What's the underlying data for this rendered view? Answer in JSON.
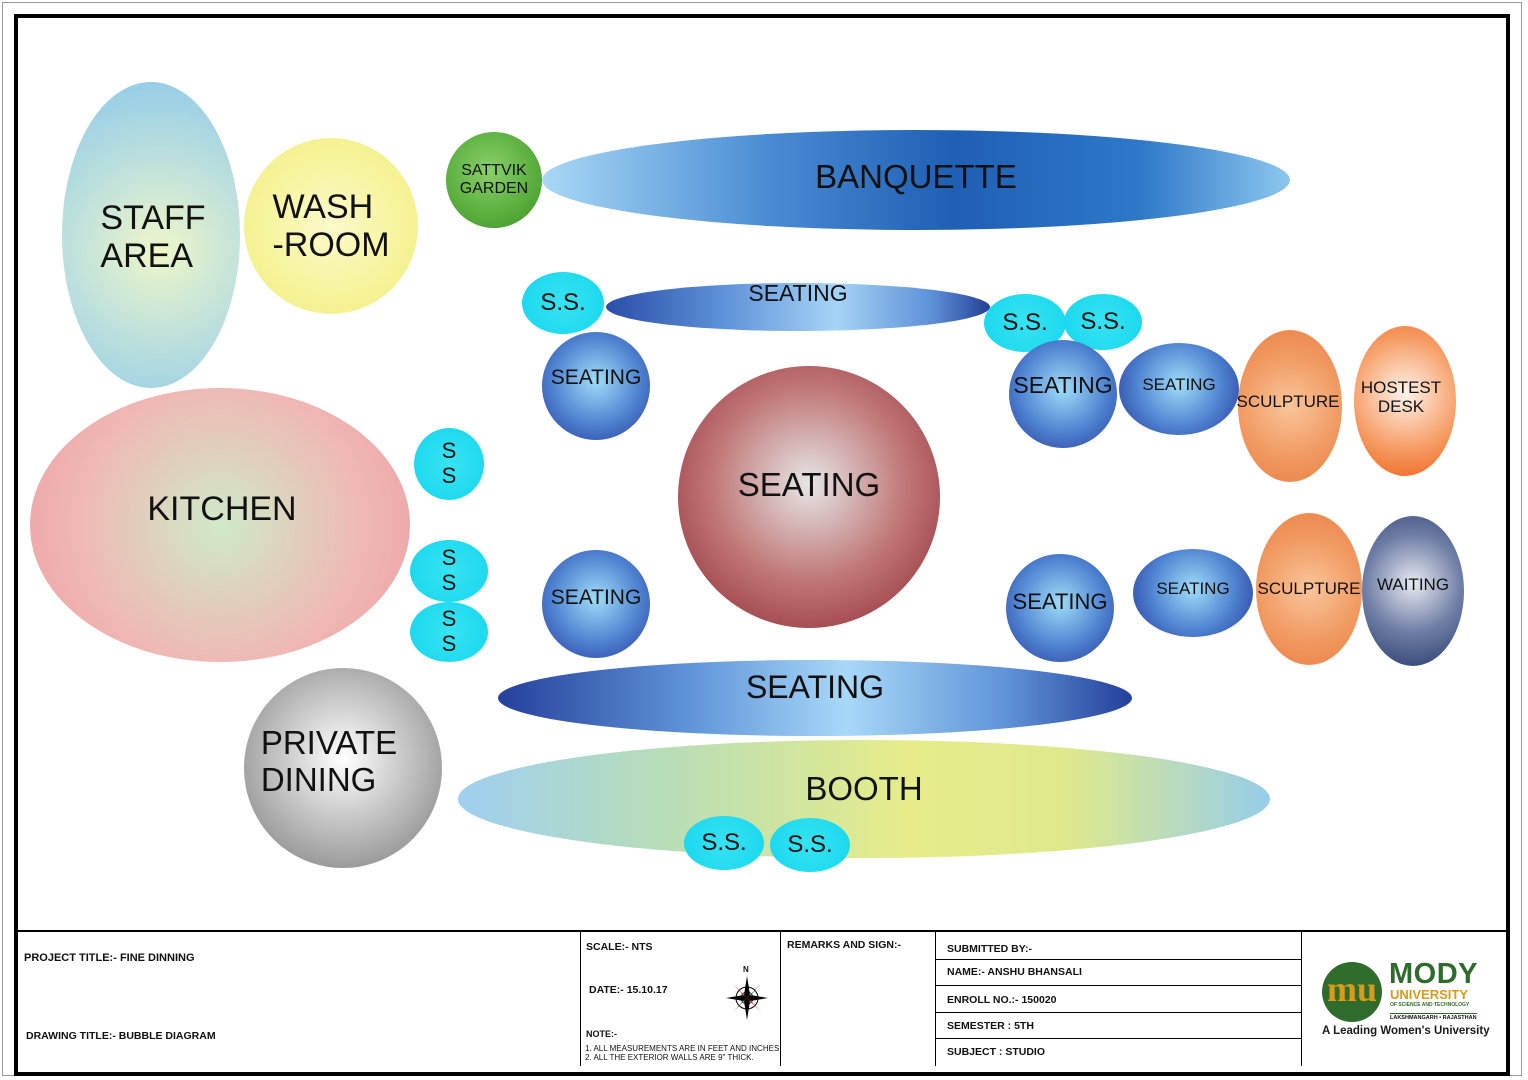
{
  "bubbles": [
    {
      "id": "staff-area",
      "text": "STAFF\nAREA",
      "grad": "radial-gradient(circle at 55% 55%, #eef6c9 0%, #bfe1dc 45%, #89c7ea 100%)",
      "fs": 34
    },
    {
      "id": "wash-room",
      "text": "WASH\n-ROOM",
      "grad": "radial-gradient(circle at 50% 50%, #fbfacb 0%, #f6f398 60%, #f0ec86 100%)",
      "fs": 34
    },
    {
      "id": "sattvik-garden",
      "text": "SATTVIK\nGARDEN",
      "grad": "radial-gradient(circle at 45% 40%, #8ad06a 0%, #58ad3c 60%, #3d8d26 100%)",
      "fs": 16
    },
    {
      "id": "banquette",
      "text": "BANQUETTE",
      "grad": "linear-gradient(90deg, #a9d8f5 0%, #4a8cd4 30%, #1f5fb4 55%, #2f78c8 80%, #8cc7ee 100%)",
      "fs": 33
    },
    {
      "id": "ss-1",
      "text": "S.S.",
      "grad": "radial-gradient(circle, #37e3f2 0%, #16d6ee 100%)",
      "fs": 24
    },
    {
      "id": "seating-top-bar",
      "text": "SEATING",
      "grad": "linear-gradient(90deg, #2a4ea8 0%, #5d90d8 30%, #a6d4f6 60%, #5d90d8 85%, #243f96 100%)",
      "fs": 23
    },
    {
      "id": "ss-2",
      "text": "S.S.",
      "grad": "radial-gradient(circle, #37e3f2 0%, #16d6ee 100%)",
      "fs": 24
    },
    {
      "id": "ss-3",
      "text": "S.S.",
      "grad": "radial-gradient(circle, #37e3f2 0%, #16d6ee 100%)",
      "fs": 24
    },
    {
      "id": "seating-left-upper",
      "text": "SEATING",
      "grad": "radial-gradient(circle at 50% 45%, #9fdcf8 0%, #4e82d0 55%, #28389a 100%)",
      "fs": 21
    },
    {
      "id": "seating-right-upper-1",
      "text": "SEATING",
      "grad": "radial-gradient(circle at 50% 45%, #9fdcf8 0%, #4e82d0 55%, #28389a 100%)",
      "fs": 23
    },
    {
      "id": "seating-right-upper-2",
      "text": "SEATING",
      "grad": "radial-gradient(circle at 50% 45%, #9fdcf8 0%, #4e82d0 55%, #28389a 100%)",
      "fs": 17
    },
    {
      "id": "sculpture-upper",
      "text": "SCULPTURE",
      "grad": "radial-gradient(circle at 50% 50%, #f9c59a 0%, #f19a62 55%, #e98046 100%)",
      "fs": 17
    },
    {
      "id": "hostest-desk",
      "text": "HOSTEST\nDESK",
      "grad": "radial-gradient(circle at 50% 45%, #fff4ec 0%, #f6a06a 55%, #ef5f18 100%)",
      "fs": 17
    },
    {
      "id": "ss-vertical-1",
      "text": "S\nS",
      "grad": "radial-gradient(circle, #37e3f2 0%, #16d6ee 100%)",
      "fs": 22
    },
    {
      "id": "kitchen",
      "text": "KITCHEN",
      "grad": "radial-gradient(circle at 50% 50%, #cfeac8 0%, #efb8b4 60%, #ee9ea2 100%)",
      "fs": 34
    },
    {
      "id": "seating-center",
      "text": "SEATING",
      "grad": "radial-gradient(circle at 50% 45%, #e6e6e6 0%, #c07676 50%, #8a2330 100%)",
      "fs": 33
    },
    {
      "id": "ss-vertical-2",
      "text": "S\nS",
      "grad": "radial-gradient(circle, #37e3f2 0%, #16d6ee 100%)",
      "fs": 22
    },
    {
      "id": "ss-vertical-3",
      "text": "S\nS",
      "grad": "radial-gradient(circle, #37e3f2 0%, #16d6ee 100%)",
      "fs": 22
    },
    {
      "id": "seating-left-lower",
      "text": "SEATING",
      "grad": "radial-gradient(circle at 50% 45%, #9fdcf8 0%, #4e82d0 55%, #28389a 100%)",
      "fs": 21
    },
    {
      "id": "seating-right-lower-1",
      "text": "SEATING",
      "grad": "radial-gradient(circle at 50% 45%, #9fdcf8 0%, #4e82d0 55%, #28389a 100%)",
      "fs": 22
    },
    {
      "id": "seating-right-lower-2",
      "text": "SEATING",
      "grad": "radial-gradient(circle at 50% 45%, #9fdcf8 0%, #4e82d0 55%, #28389a 100%)",
      "fs": 17
    },
    {
      "id": "sculpture-lower",
      "text": "SCULPTURE",
      "grad": "radial-gradient(circle at 50% 50%, #f9c59a 0%, #f19a62 55%, #e98046 100%)",
      "fs": 17
    },
    {
      "id": "waiting",
      "text": "WAITING",
      "grad": "radial-gradient(circle at 50% 45%, #e8eaf0 0%, #6f7ea6 50%, #263a6a 100%)",
      "fs": 17
    },
    {
      "id": "seating-bottom-bar",
      "text": "SEATING",
      "grad": "linear-gradient(90deg, #24409a 0%, #5f93d8 30%, #a8d8f8 55%, #5f93d8 80%, #24409a 100%)",
      "fs": 32
    },
    {
      "id": "private-dining",
      "text": "PRIVATE\nDINING",
      "grad": "radial-gradient(circle at 50% 45%, #ffffff 0%, #b5b5b5 55%, #777777 100%)",
      "fs": 33
    },
    {
      "id": "booth",
      "text": "BOOTH",
      "grad": "linear-gradient(90deg, #9fcff0 0%, #b7ddb8 25%, #e6ec8a 55%, #dfe98c 75%, #96cdea 100%)",
      "fs": 33
    },
    {
      "id": "ss-4",
      "text": "S.S.",
      "grad": "radial-gradient(circle, #37e3f2 0%, #16d6ee 100%)",
      "fs": 24
    },
    {
      "id": "ss-5",
      "text": "S.S.",
      "grad": "radial-gradient(circle, #37e3f2 0%, #16d6ee 100%)",
      "fs": 24
    }
  ],
  "title_block": {
    "project_title": "PROJECT TITLE:- FINE DINNING",
    "drawing_title": "DRAWING TITLE:-  BUBBLE DIAGRAM",
    "scale": "SCALE:- NTS",
    "date": "DATE:- 15.10.17",
    "note_label": "NOTE:-",
    "note_1": "1. ALL MEASUREMENTS ARE IN FEET AND INCHES.",
    "note_2": "2. ALL THE EXTERIOR WALLS ARE 9\" THICK.",
    "remarks": "REMARKS AND SIGN:-",
    "submitted_by": "SUBMITTED BY:-",
    "name": "NAME:- ANSHU BHANSALI",
    "enroll": "ENROLL NO.:- 150020",
    "semester": "SEMESTER : 5TH",
    "subject": "SUBJECT : STUDIO",
    "north": "N"
  },
  "logo": {
    "mark": "mu",
    "name": "MODY",
    "sub": "UNIVERSITY",
    "sub2": "OF SCIENCE AND TECHNOLOGY",
    "place": "LAKSHMANGARH • RAJASTHAN",
    "tagline": "A Leading Women's University",
    "colors": {
      "green": "#2f6b2a",
      "gold": "#d79a1b"
    }
  }
}
